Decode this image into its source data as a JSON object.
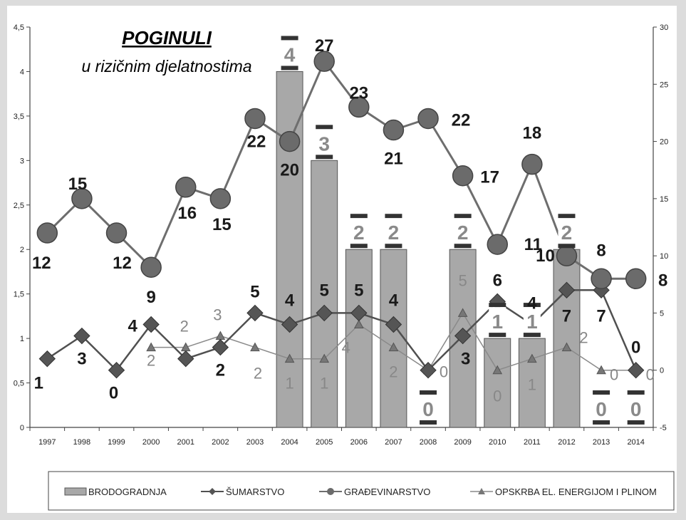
{
  "chart_data": {
    "type": "bar",
    "title": "POGINULI",
    "subtitle": "u rizičnim djelatnostima",
    "categories": [
      "1997",
      "1998",
      "1999",
      "2000",
      "2001",
      "2002",
      "2003",
      "2004",
      "2005",
      "2006",
      "2007",
      "2008",
      "2009",
      "2010",
      "2011",
      "2012",
      "2013",
      "2014"
    ],
    "y_left": {
      "min": 0,
      "max": 4.5,
      "ticks": [
        "0",
        "0,5",
        "1",
        "1,5",
        "2",
        "2,5",
        "3",
        "3,5",
        "4",
        "4,5"
      ]
    },
    "y_right": {
      "min": -5,
      "max": 30,
      "ticks": [
        "-5",
        "0",
        "5",
        "10",
        "15",
        "20",
        "25",
        "30"
      ]
    },
    "grid": false,
    "legend_position": "bottom",
    "series": [
      {
        "name": "BRODOGRADNJA",
        "kind": "bar",
        "axis": "left",
        "color": "#a8a8a8",
        "values": [
          null,
          null,
          null,
          null,
          null,
          null,
          null,
          4,
          3,
          2,
          2,
          0,
          2,
          1,
          1,
          2,
          0,
          0
        ],
        "labels": [
          "",
          "",
          "",
          "",
          "",
          "",
          "",
          "4",
          "3",
          "2",
          "2",
          "0",
          "2",
          "1",
          "1",
          "2",
          "0",
          "0"
        ]
      },
      {
        "name": "ŠUMARSTVO",
        "kind": "line",
        "marker": "diamond",
        "axis": "right",
        "color": "#505050",
        "values": [
          1,
          3,
          0,
          4,
          1,
          2,
          5,
          4,
          5,
          5,
          4,
          0,
          3,
          6,
          4,
          7,
          7,
          0
        ],
        "labels": [
          "1",
          "3",
          "0",
          "4",
          "",
          "2",
          "5",
          "4",
          "5",
          "5",
          "4",
          "",
          "3",
          "6",
          "4",
          "7",
          "7",
          "0"
        ]
      },
      {
        "name": "GRAĐEVINARSTVO",
        "kind": "line",
        "marker": "circle",
        "axis": "right",
        "color": "#6e6e6e",
        "values": [
          12,
          15,
          12,
          9,
          16,
          15,
          22,
          20,
          27,
          23,
          21,
          22,
          17,
          11,
          18,
          10,
          8,
          8
        ],
        "labels": [
          "12",
          "15",
          "12",
          "9",
          "16",
          "15",
          "22",
          "20",
          "27",
          "23",
          "21",
          "22",
          "17",
          "11",
          "18",
          "10",
          "8",
          "8"
        ]
      },
      {
        "name": "OPSKRBA EL. ENERGIJOM I PLINOM",
        "kind": "line",
        "marker": "triangle",
        "axis": "right",
        "color": "#8a8a8a",
        "values": [
          null,
          null,
          null,
          2,
          2,
          3,
          2,
          1,
          1,
          4,
          2,
          0,
          5,
          0,
          1,
          2,
          0,
          0
        ],
        "labels": [
          "",
          "",
          "",
          "2",
          "2",
          "3",
          "2",
          "1",
          "1",
          "4",
          "2",
          "0",
          "5",
          "0",
          "1",
          "2",
          "0",
          "0"
        ]
      }
    ]
  }
}
